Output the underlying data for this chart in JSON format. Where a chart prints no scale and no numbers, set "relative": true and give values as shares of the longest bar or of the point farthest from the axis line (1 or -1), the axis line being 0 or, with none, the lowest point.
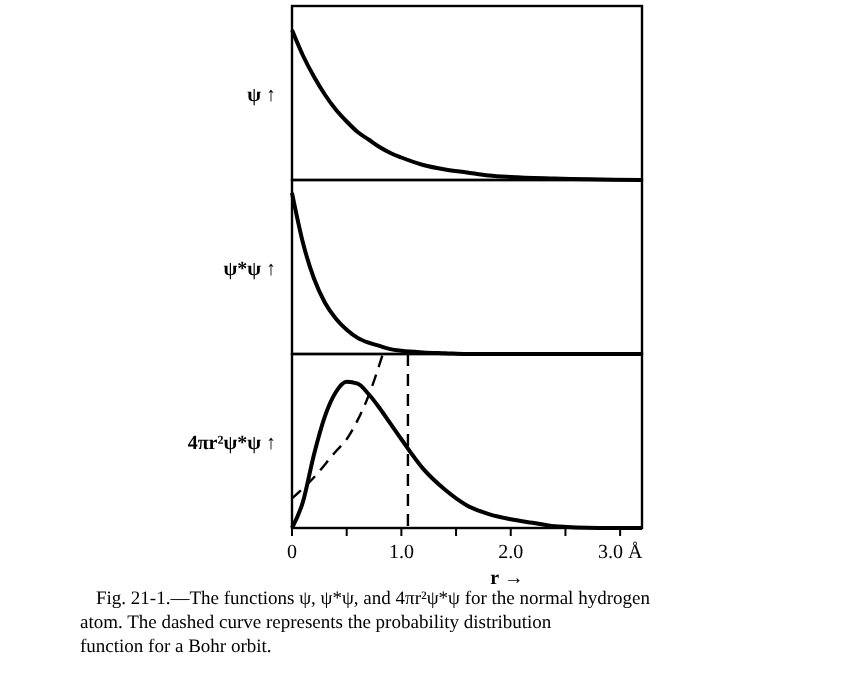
{
  "chart_data": [
    {
      "type": "line",
      "ylabel": "ψ ↑",
      "relative": true,
      "tick_labels": false,
      "xlim": [
        0,
        3.2
      ],
      "x": [
        0,
        0.1,
        0.2,
        0.3,
        0.4,
        0.5,
        0.6,
        0.7,
        0.8,
        0.9,
        1.0,
        1.2,
        1.4,
        1.6,
        1.8,
        2.0,
        2.4,
        3.2
      ],
      "series": [
        {
          "color": "#000000",
          "values": [
            1,
            0.83,
            0.69,
            0.57,
            0.47,
            0.39,
            0.32,
            0.27,
            0.22,
            0.18,
            0.15,
            0.1,
            0.07,
            0.05,
            0.03,
            0.02,
            0.01,
            0
          ]
        }
      ]
    },
    {
      "type": "line",
      "ylabel": "ψ*ψ ↑",
      "relative": true,
      "tick_labels": false,
      "xlim": [
        0,
        3.2
      ],
      "x": [
        0,
        0.1,
        0.2,
        0.3,
        0.4,
        0.5,
        0.6,
        0.7,
        0.8,
        0.9,
        1.0,
        1.2,
        1.4,
        1.6,
        2.0,
        3.2
      ],
      "series": [
        {
          "color": "#000000",
          "values": [
            1,
            0.69,
            0.47,
            0.32,
            0.22,
            0.15,
            0.1,
            0.07,
            0.05,
            0.03,
            0.02,
            0.01,
            0.005,
            0,
            0,
            0
          ]
        }
      ]
    },
    {
      "type": "line",
      "ylabel": "4πr²ψ*ψ ↑",
      "xlabel": "r →",
      "relative": true,
      "tick_labels": "x",
      "xlim": [
        0,
        3.2
      ],
      "xticks": [
        {
          "value": 0,
          "label": "0"
        },
        {
          "value": 0.5,
          "label": null
        },
        {
          "value": 1,
          "label": "1.0"
        },
        {
          "value": 1.5,
          "label": null
        },
        {
          "value": 2,
          "label": "2.0"
        },
        {
          "value": 2.5,
          "label": null
        },
        {
          "value": 3,
          "label": "3.0 Å"
        }
      ],
      "annotations": [
        "Fig. 21-1.—The functions ψ, ψ*ψ, and 4πr²ψ*ψ for the normal hydrogen atom. The dashed curve represents the probability distribution function for a Bohr orbit."
      ],
      "series": [
        {
          "color": "#000000",
          "line_style": "solid",
          "x": [
            0,
            0.1,
            0.2,
            0.3,
            0.4,
            0.5,
            0.6,
            0.7,
            0.8,
            0.9,
            1.0,
            1.2,
            1.4,
            1.6,
            1.8,
            2.0,
            2.2,
            2.4,
            2.8,
            3.2
          ],
          "values": [
            0,
            0.15,
            0.42,
            0.64,
            0.78,
            0.84,
            0.83,
            0.77,
            0.69,
            0.6,
            0.51,
            0.34,
            0.22,
            0.13,
            0.08,
            0.05,
            0.03,
            0.01,
            0,
            0
          ]
        },
        {
          "color": "#000000",
          "line_style": "dashed",
          "x": [
            0,
            0.2,
            0.4,
            0.5,
            0.6,
            0.7,
            0.83,
            0.95,
            1.06,
            1.06
          ],
          "values": [
            0.17,
            0.29,
            0.44,
            0.51,
            0.62,
            0.76,
            1,
            null,
            1,
            0
          ]
        }
      ]
    }
  ]
}
